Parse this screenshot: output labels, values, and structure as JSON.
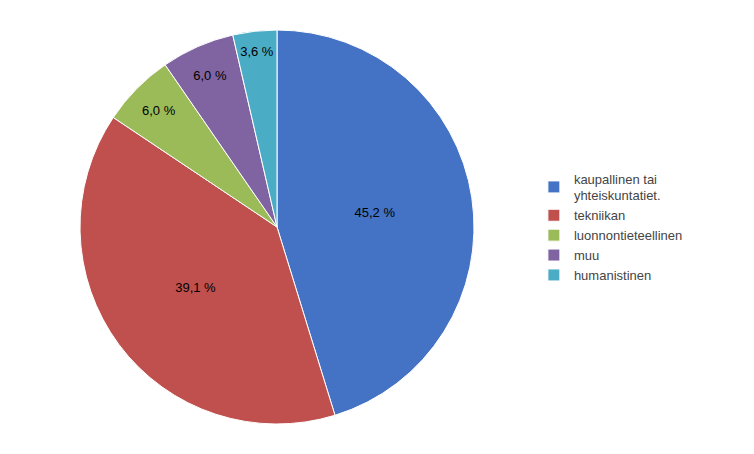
{
  "chart_data": {
    "type": "pie",
    "categories": [
      "kaupallinen tai\nyhteiskuntatiet.",
      "tekniikan",
      "luonnontieteellinen",
      "muu",
      "humanistinen"
    ],
    "values": [
      45.2,
      39.1,
      6.0,
      6.0,
      3.6
    ],
    "value_labels": [
      "45,2 %",
      "39,1 %",
      "6,0 %",
      "6,0 %",
      "3,6 %"
    ],
    "colors": [
      "#4472C4",
      "#C0504D",
      "#9BBB59",
      "#8064A2",
      "#4BACC6"
    ],
    "data_labels": true,
    "legend": "right"
  }
}
